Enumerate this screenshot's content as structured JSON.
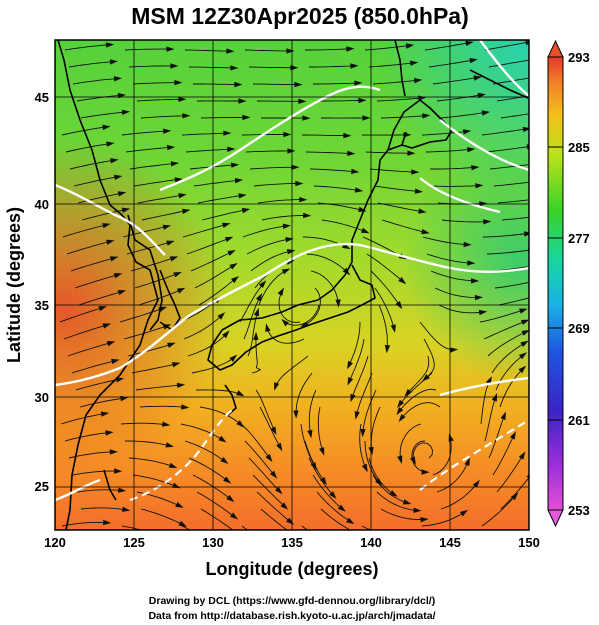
{
  "title": "MSM 12Z30Apr2025 (850.0hPa)",
  "xlabel": "Longitude (degrees)",
  "ylabel": "Latitude  (degrees)",
  "x_ticks": [
    "120",
    "125",
    "130",
    "135",
    "140",
    "145",
    "150"
  ],
  "y_ticks": [
    "25",
    "30",
    "35",
    "40",
    "45"
  ],
  "colorbar_ticks": [
    "293",
    "285",
    "277",
    "269",
    "261",
    "253"
  ],
  "credits": {
    "line1": "Drawing by DCL (https://www.gfd-dennou.org/library/dcl/)",
    "line2": "Data from http://database.rish.kyoto-u.ac.jp/arch/jmadata/"
  },
  "map": {
    "lon_range": [
      120,
      150
    ],
    "lat_range": [
      22.4,
      47.6
    ],
    "gridlines": true,
    "field": "temperature (K) shading with wind streamlines",
    "colorbar_range": [
      253,
      293
    ]
  }
}
